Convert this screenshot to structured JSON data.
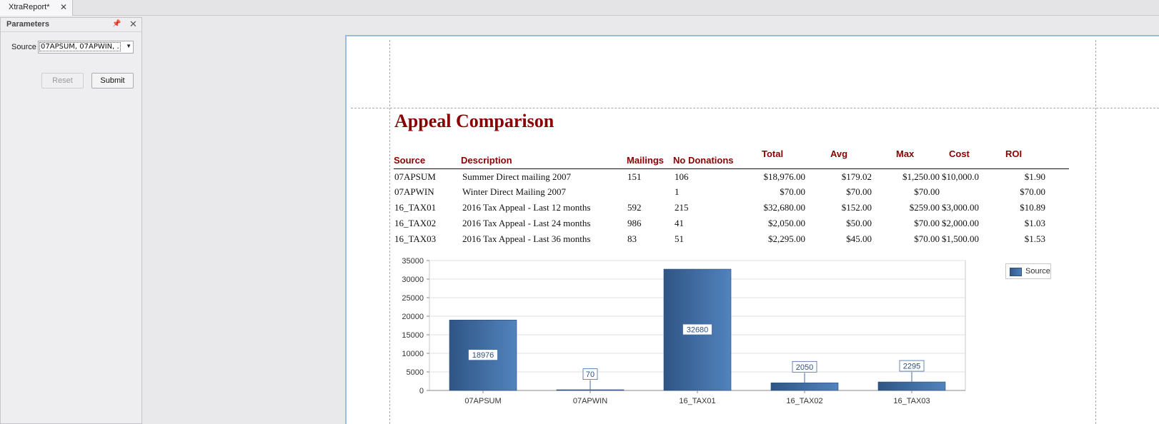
{
  "tabs": [
    {
      "label": "XtraReport*"
    }
  ],
  "params_panel": {
    "title": "Parameters",
    "source_label": "Source",
    "source_value": "07APSUM, 07APWIN, …",
    "reset_label": "Reset",
    "submit_label": "Submit"
  },
  "report": {
    "title": "Appeal Comparison",
    "columns": [
      "Source",
      "Description",
      "Mailings",
      "No Donations",
      "Total",
      "Avg",
      "Max",
      "Cost",
      "ROI"
    ],
    "rows": [
      [
        "07APSUM",
        "Summer Direct mailing 2007",
        "151",
        "106",
        "$18,976.00",
        "$179.02",
        "$1,250.00",
        "$10,000.0",
        "$1.90"
      ],
      [
        "07APWIN",
        "Winter Direct Mailing 2007",
        "",
        "1",
        "$70.00",
        "$70.00",
        "$70.00",
        "",
        "$70.00"
      ],
      [
        "16_TAX01",
        "2016 Tax Appeal - Last 12 months",
        "592",
        "215",
        "$32,680.00",
        "$152.00",
        "$259.00",
        "$3,000.00",
        "$10.89"
      ],
      [
        "16_TAX02",
        "2016 Tax Appeal - Last 24 months",
        "986",
        "41",
        "$2,050.00",
        "$50.00",
        "$70.00",
        "$2,000.00",
        "$1.03"
      ],
      [
        "16_TAX03",
        "2016 Tax Appeal - Last 36 months",
        "83",
        "51",
        "$2,295.00",
        "$45.00",
        "$70.00",
        "$1,500.00",
        "$1.53"
      ]
    ]
  },
  "chart_data": {
    "type": "bar",
    "categories": [
      "07APSUM",
      "07APWIN",
      "16_TAX01",
      "16_TAX02",
      "16_TAX03"
    ],
    "series": [
      {
        "name": "Source",
        "values": [
          18976,
          70,
          32680,
          2050,
          2295
        ]
      }
    ],
    "ylim": [
      0,
      35000
    ],
    "yticks": [
      0,
      5000,
      10000,
      15000,
      20000,
      25000,
      30000,
      35000
    ],
    "grid": true,
    "legend": "top-right",
    "bar_color": "#3f6aa1"
  }
}
